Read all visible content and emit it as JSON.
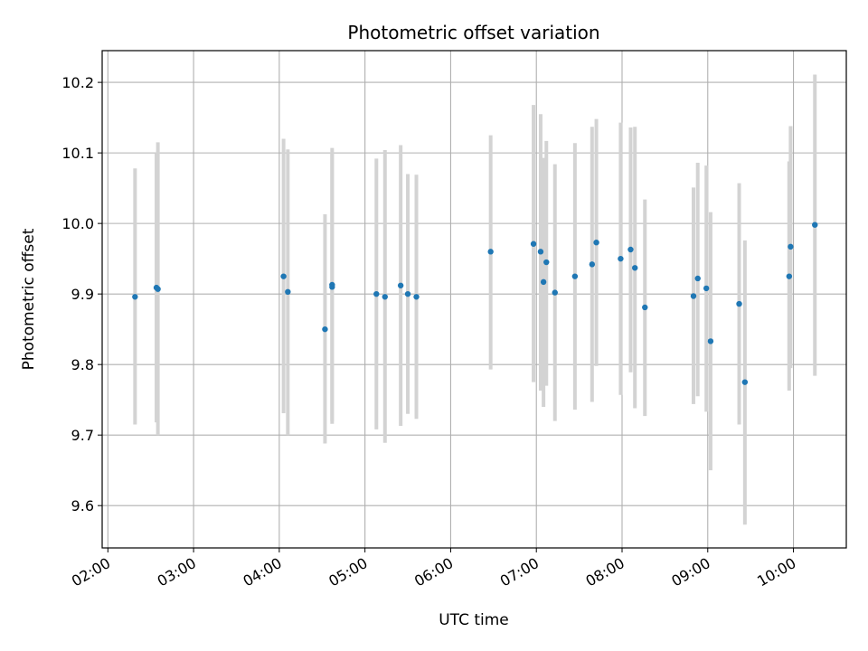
{
  "chart_data": {
    "type": "scatter",
    "title": "Photometric offset variation",
    "xlabel": "UTC time",
    "ylabel": "Photometric offset",
    "x_unit": "time-of-day HH:MM",
    "xlim": [
      "01:56",
      "10:37"
    ],
    "ylim": [
      9.54,
      10.245
    ],
    "x_ticks": [
      "02:00",
      "03:00",
      "04:00",
      "05:00",
      "06:00",
      "07:00",
      "08:00",
      "09:00",
      "10:00"
    ],
    "y_ticks": [
      9.6,
      9.7,
      9.8,
      9.9,
      10.0,
      10.1,
      10.2
    ],
    "y_tick_labels": [
      "9.6",
      "9.7",
      "9.8",
      "9.9",
      "10.0",
      "10.1",
      "10.2"
    ],
    "grid": true,
    "colors": {
      "point": "#1f77b4",
      "errorbar": "#d3d3d3",
      "grid": "#b0b0b0"
    },
    "points": [
      {
        "x": "02:19",
        "y": 9.896,
        "ylow": 9.715,
        "yhigh": 10.078
      },
      {
        "x": "02:34",
        "y": 9.909,
        "ylow": 9.718,
        "yhigh": 10.1
      },
      {
        "x": "02:35",
        "y": 9.907,
        "ylow": 9.7,
        "yhigh": 10.115
      },
      {
        "x": "04:03",
        "y": 9.925,
        "ylow": 9.731,
        "yhigh": 10.12
      },
      {
        "x": "04:06",
        "y": 9.903,
        "ylow": 9.7,
        "yhigh": 10.105
      },
      {
        "x": "04:32",
        "y": 9.85,
        "ylow": 9.688,
        "yhigh": 10.013
      },
      {
        "x": "04:37",
        "y": 9.913,
        "ylow": 9.716,
        "yhigh": 10.107
      },
      {
        "x": "04:37",
        "y": 9.91,
        "ylow": 9.72,
        "yhigh": 10.1
      },
      {
        "x": "05:08",
        "y": 9.9,
        "ylow": 9.708,
        "yhigh": 10.092
      },
      {
        "x": "05:14",
        "y": 9.896,
        "ylow": 9.689,
        "yhigh": 10.104
      },
      {
        "x": "05:25",
        "y": 9.912,
        "ylow": 9.713,
        "yhigh": 10.111
      },
      {
        "x": "05:30",
        "y": 9.9,
        "ylow": 9.73,
        "yhigh": 10.07
      },
      {
        "x": "05:36",
        "y": 9.896,
        "ylow": 9.723,
        "yhigh": 10.069
      },
      {
        "x": "06:28",
        "y": 9.96,
        "ylow": 9.793,
        "yhigh": 10.125
      },
      {
        "x": "06:58",
        "y": 9.971,
        "ylow": 9.775,
        "yhigh": 10.168
      },
      {
        "x": "07:03",
        "y": 9.96,
        "ylow": 9.763,
        "yhigh": 10.155
      },
      {
        "x": "07:05",
        "y": 9.917,
        "ylow": 9.74,
        "yhigh": 10.093
      },
      {
        "x": "07:07",
        "y": 9.945,
        "ylow": 9.77,
        "yhigh": 10.117
      },
      {
        "x": "07:13",
        "y": 9.902,
        "ylow": 9.72,
        "yhigh": 10.084
      },
      {
        "x": "07:27",
        "y": 9.925,
        "ylow": 9.736,
        "yhigh": 10.114
      },
      {
        "x": "07:39",
        "y": 9.942,
        "ylow": 9.747,
        "yhigh": 10.137
      },
      {
        "x": "07:42",
        "y": 9.973,
        "ylow": 9.798,
        "yhigh": 10.148
      },
      {
        "x": "07:59",
        "y": 9.95,
        "ylow": 9.757,
        "yhigh": 10.143
      },
      {
        "x": "08:06",
        "y": 9.963,
        "ylow": 9.789,
        "yhigh": 10.136
      },
      {
        "x": "08:09",
        "y": 9.937,
        "ylow": 9.738,
        "yhigh": 10.137
      },
      {
        "x": "08:16",
        "y": 9.881,
        "ylow": 9.727,
        "yhigh": 10.034
      },
      {
        "x": "08:50",
        "y": 9.897,
        "ylow": 9.744,
        "yhigh": 10.051
      },
      {
        "x": "08:53",
        "y": 9.922,
        "ylow": 9.755,
        "yhigh": 10.086
      },
      {
        "x": "08:59",
        "y": 9.908,
        "ylow": 9.733,
        "yhigh": 10.082
      },
      {
        "x": "09:02",
        "y": 9.833,
        "ylow": 9.65,
        "yhigh": 10.016
      },
      {
        "x": "09:22",
        "y": 9.886,
        "ylow": 9.715,
        "yhigh": 10.057
      },
      {
        "x": "09:26",
        "y": 9.775,
        "ylow": 9.573,
        "yhigh": 9.976
      },
      {
        "x": "09:57",
        "y": 9.925,
        "ylow": 9.763,
        "yhigh": 10.088
      },
      {
        "x": "09:58",
        "y": 9.967,
        "ylow": 9.795,
        "yhigh": 10.138
      },
      {
        "x": "10:15",
        "y": 9.998,
        "ylow": 9.784,
        "yhigh": 10.211
      }
    ]
  }
}
